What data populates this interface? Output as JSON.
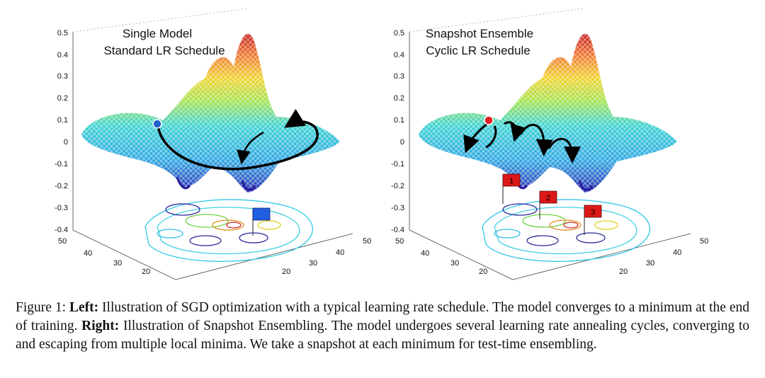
{
  "panels": [
    {
      "title_line1": "Single Model",
      "title_line2": "Standard LR Schedule",
      "z_ticks": [
        "0.5",
        "0.4",
        "0.3",
        "0.2",
        "0.1",
        "0",
        "-0.1",
        "-0.2",
        "-0.3",
        "-0.4"
      ],
      "y_ticks": [
        "50",
        "40",
        "30",
        "20"
      ],
      "x_ticks": [
        "20",
        "30",
        "40",
        "50"
      ],
      "flags": []
    },
    {
      "title_line1": "Snapshot Ensemble",
      "title_line2": "Cyclic LR Schedule",
      "z_ticks": [
        "0.5",
        "0.4",
        "0.3",
        "0.2",
        "0.1",
        "0",
        "-0.1",
        "-0.2",
        "-0.3",
        "-0.4"
      ],
      "y_ticks": [
        "50",
        "40",
        "30",
        "20"
      ],
      "x_ticks": [
        "20",
        "30",
        "40",
        "50"
      ],
      "flags": [
        "1",
        "2",
        "3"
      ]
    }
  ],
  "colors": {
    "start_point_left": "#2060d0",
    "start_point_right": "#e02020",
    "flag_left": "#1f5fe0",
    "flag_right": "#dd1818",
    "arrow": "#000000"
  },
  "caption": {
    "figure_label": "Figure 1:",
    "left_label": "Left:",
    "left_text": "Illustration of SGD optimization with a typical learning rate schedule. The model converges to a minimum at the end of training.",
    "right_label": "Right:",
    "right_text": "Illustration of Snapshot Ensembling. The model undergoes several learning rate annealing cycles, converging to and escaping from multiple local minima. We take a snapshot at each minimum for test-time ensembling."
  }
}
